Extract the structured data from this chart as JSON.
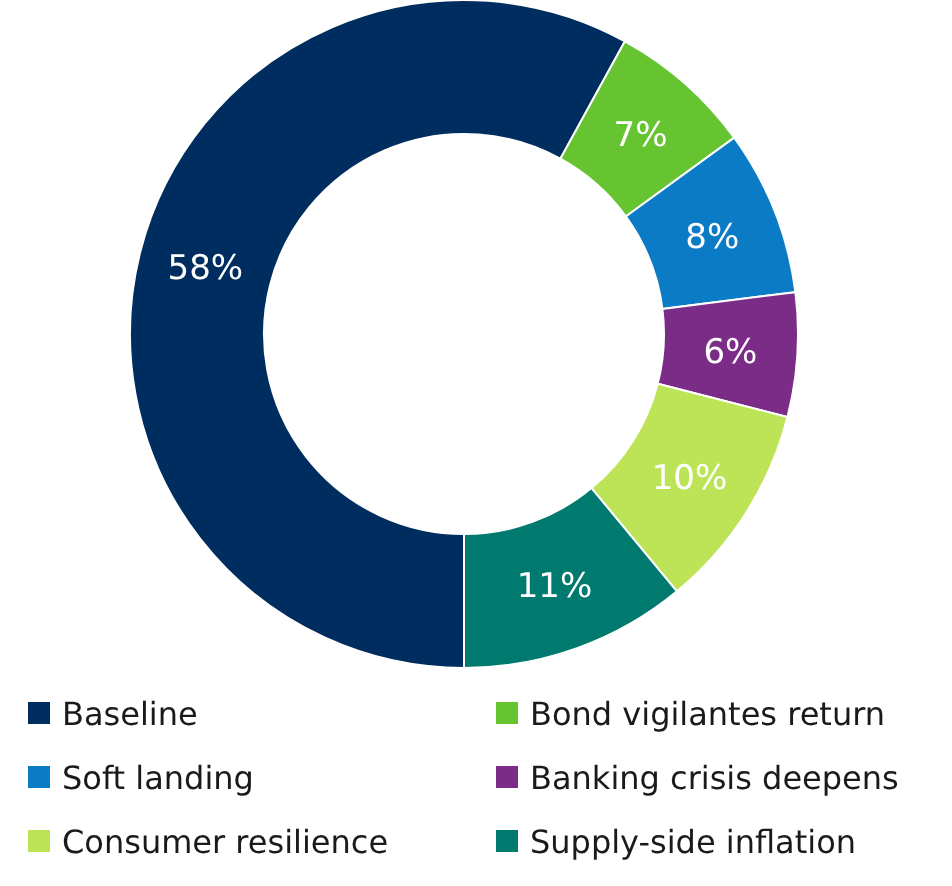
{
  "chart_data": {
    "type": "donut",
    "categories": [
      "Baseline",
      "Bond vigilantes return",
      "Soft landing",
      "Banking crisis deepens",
      "Consumer resilience",
      "Supply-side inflation"
    ],
    "values": [
      58,
      7,
      8,
      6,
      10,
      11
    ],
    "value_labels": [
      "58%",
      "7%",
      "8%",
      "6%",
      "10%",
      "11%"
    ],
    "colors": [
      "#002d5f",
      "#66c430",
      "#0a7bc4",
      "#7b2c86",
      "#bde456",
      "#00796e"
    ],
    "legend": "bottom"
  }
}
